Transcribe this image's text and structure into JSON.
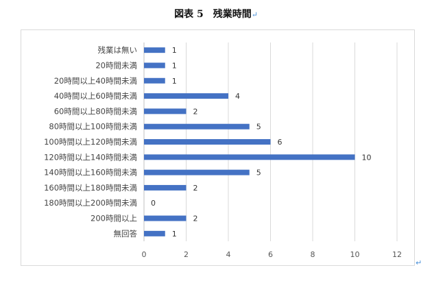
{
  "title": "図表 5　残業時間",
  "paragraph_mark": "↵",
  "chart_data": {
    "type": "bar",
    "orientation": "horizontal",
    "categories": [
      "残業は無い",
      "20時間未満",
      "20時間以上40時間未満",
      "40時間以上60時間未満",
      "60時間以上80時間未満",
      "80時間以上100時間未満",
      "100時間以上120時間未満",
      "120時間以上140時間未満",
      "140時間以上160時間未満",
      "160時間以上180時間未満",
      "180時間以上200時間未満",
      "200時間以上",
      "無回答"
    ],
    "values": [
      1,
      1,
      1,
      4,
      2,
      5,
      6,
      10,
      5,
      2,
      0,
      2,
      1
    ],
    "xlim": [
      0,
      12
    ],
    "xticks": [
      0,
      2,
      4,
      6,
      8,
      10,
      12
    ],
    "grid": true,
    "bar_color": "#4472c4"
  }
}
